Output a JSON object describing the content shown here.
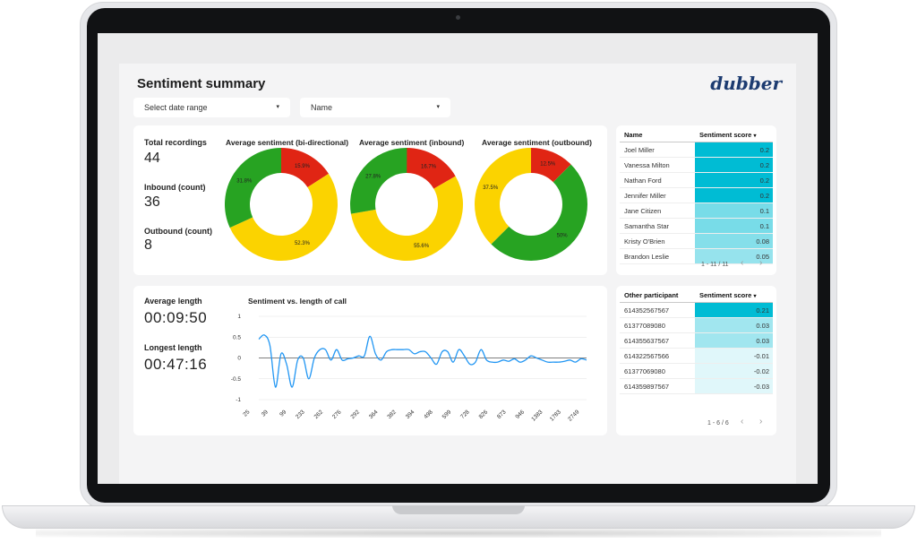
{
  "header": {
    "title": "Sentiment summary",
    "logo": "dubber"
  },
  "filters": {
    "date_range": "Select date range",
    "name": "Name",
    "caret": "▾"
  },
  "kpis": [
    {
      "label": "Total recordings",
      "value": "44"
    },
    {
      "label": "Inbound (count)",
      "value": "36"
    },
    {
      "label": "Outbound (count)",
      "value": "8"
    }
  ],
  "lengths": [
    {
      "label": "Average length",
      "value": "00:09:50"
    },
    {
      "label": "Longest length",
      "value": "00:47:16"
    }
  ],
  "colors": {
    "red": "#e02514",
    "yellow": "#fbd300",
    "green": "#27a322",
    "line": "#2196f3",
    "teal": "#00bcd4"
  },
  "donuts": [
    {
      "title": "Average sentiment (bi-directional)",
      "slices": [
        {
          "name": "red",
          "pct": 15.9,
          "label": "15.9%"
        },
        {
          "name": "yellow",
          "pct": 52.3,
          "label": "52.3%"
        },
        {
          "name": "green",
          "pct": 31.8,
          "label": "31.8%"
        }
      ]
    },
    {
      "title": "Average sentiment (inbound)",
      "slices": [
        {
          "name": "red",
          "pct": 16.7,
          "label": "16.7%"
        },
        {
          "name": "yellow",
          "pct": 55.6,
          "label": "55.6%"
        },
        {
          "name": "green",
          "pct": 27.8,
          "label": "27.8%"
        }
      ]
    },
    {
      "title": "Average sentiment (outbound)",
      "slices": [
        {
          "name": "red",
          "pct": 12.5,
          "label": "12.5%"
        },
        {
          "name": "green",
          "pct": 50,
          "label": "50%"
        },
        {
          "name": "yellow",
          "pct": 37.5,
          "label": "37.5%"
        }
      ]
    }
  ],
  "chart_data": {
    "type": "line",
    "title": "Sentiment vs. length of call",
    "xlabel": "",
    "ylabel": "",
    "ylim": [
      -1,
      1
    ],
    "y_ticks": [
      "1",
      "0.5",
      "0",
      "-0.5",
      "-1"
    ],
    "x_ticks": [
      "25",
      "39",
      "99",
      "233",
      "262",
      "276",
      "292",
      "364",
      "382",
      "394",
      "498",
      "599",
      "728",
      "826",
      "873",
      "946",
      "1383",
      "1783",
      "2749"
    ],
    "grid": true,
    "x": [
      0,
      1,
      2,
      3,
      4,
      5,
      6,
      7,
      8,
      9,
      10,
      11,
      12,
      13,
      14,
      15,
      16,
      17,
      18,
      19,
      20,
      21,
      22,
      23,
      24,
      25,
      26,
      27,
      28,
      29,
      30,
      31,
      32,
      33,
      34,
      35,
      36,
      37,
      38,
      39,
      40,
      41,
      42,
      43,
      44,
      45,
      46,
      47,
      48,
      49,
      50,
      51,
      52,
      53,
      54,
      55,
      56,
      57,
      58,
      59
    ],
    "series": [
      {
        "values": [
          0.45,
          0.55,
          0.3,
          -0.7,
          0.1,
          -0.15,
          -0.7,
          -0.05,
          0.0,
          -0.5,
          0.0,
          0.2,
          0.2,
          -0.05,
          0.2,
          -0.05,
          -0.02,
          0.0,
          0.05,
          0.05,
          0.52,
          0.1,
          -0.05,
          0.15,
          0.2,
          0.2,
          0.2,
          0.2,
          0.1,
          0.15,
          0.15,
          0.0,
          -0.15,
          0.15,
          0.15,
          -0.1,
          0.2,
          0.05,
          -0.15,
          -0.1,
          0.2,
          -0.05,
          -0.1,
          -0.1,
          -0.05,
          -0.08,
          -0.02,
          -0.1,
          -0.05,
          0.05,
          0.0,
          -0.05,
          -0.1,
          -0.1,
          -0.1,
          -0.08,
          -0.05,
          -0.1,
          -0.02,
          -0.05
        ]
      }
    ]
  },
  "names_table": {
    "headers": {
      "name": "Name",
      "score": "Sentiment score",
      "sort": "▾"
    },
    "rows": [
      {
        "name": "Joel Miller",
        "score": "0.2",
        "level": 0.2
      },
      {
        "name": "Vanessa Milton",
        "score": "0.2",
        "level": 0.2
      },
      {
        "name": "Nathan Ford",
        "score": "0.2",
        "level": 0.2
      },
      {
        "name": "Jennifer Miller",
        "score": "0.2",
        "level": 0.2
      },
      {
        "name": "Jane Citizen",
        "score": "0.1",
        "level": 0.1
      },
      {
        "name": "Samantha Star",
        "score": "0.1",
        "level": 0.1
      },
      {
        "name": "Kristy O'Brien",
        "score": "0.08",
        "level": 0.08
      },
      {
        "name": "Brandon Leslie",
        "score": "0.05",
        "level": 0.05
      }
    ],
    "pager": "1 - 11 / 11",
    "prev": "‹",
    "next": "›"
  },
  "participants_table": {
    "headers": {
      "name": "Other participant",
      "score": "Sentiment score",
      "sort": "▾"
    },
    "rows": [
      {
        "name": "614352567567",
        "score": "0.21",
        "level": 0.21
      },
      {
        "name": "61377089080",
        "score": "0.03",
        "level": 0.03
      },
      {
        "name": "614355637567",
        "score": "0.03",
        "level": 0.03
      },
      {
        "name": "614322567566",
        "score": "-0.01",
        "level": -0.01
      },
      {
        "name": "61377069080",
        "score": "-0.02",
        "level": -0.02
      },
      {
        "name": "614359897567",
        "score": "-0.03",
        "level": -0.03
      }
    ],
    "pager": "1 - 6 / 6",
    "prev": "‹",
    "next": "›"
  }
}
